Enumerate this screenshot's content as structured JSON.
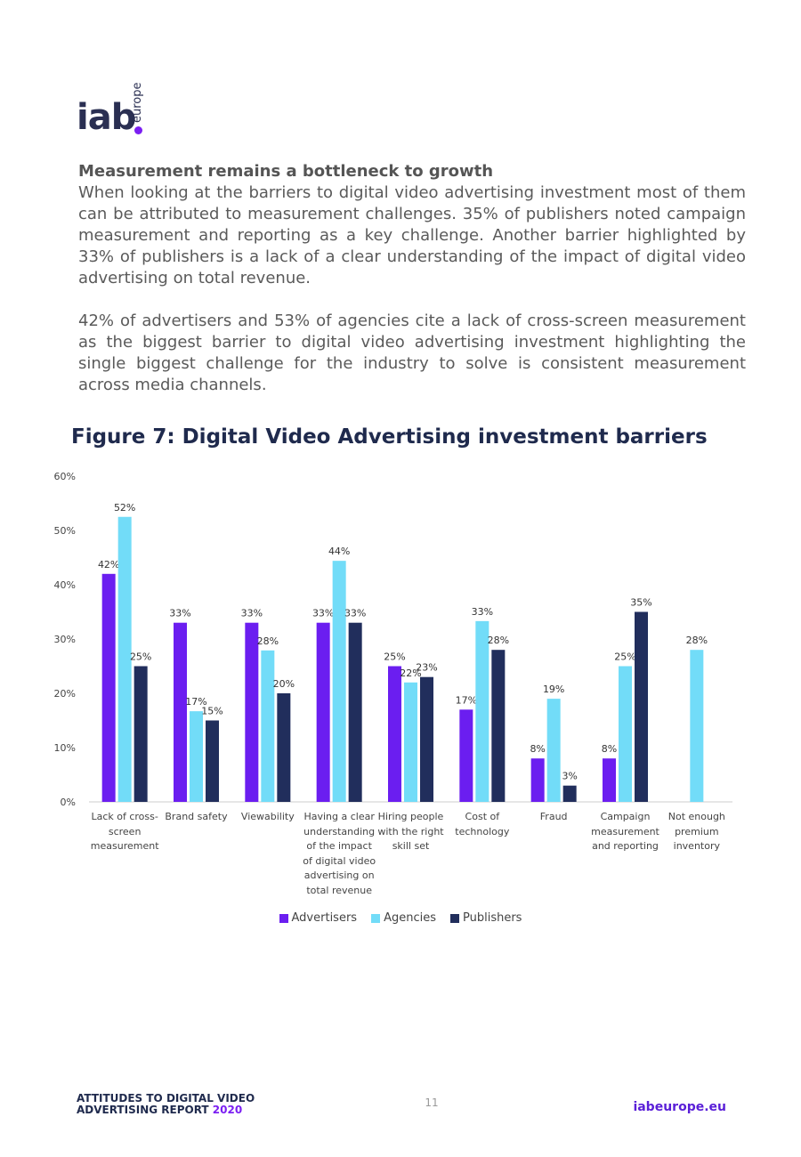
{
  "logo": {
    "main": "iab",
    "sub": "europe"
  },
  "section": {
    "heading": "Measurement remains a bottleneck to growth",
    "paragraph1": "When looking at the barriers to digital video advertising investment most of them can be attributed to measurement challenges. 35% of publishers noted campaign measurement and reporting as a key challenge. Another barrier highlighted by 33% of publishers is a lack of a clear understanding of the impact of digital video advertising on total revenue.",
    "paragraph2": "42% of advertisers and 53% of agencies cite a lack of cross-screen measurement as the biggest barrier to digital video advertising investment highlighting the single biggest challenge for the industry to solve is consistent measurement across media channels."
  },
  "figure_title": "Figure 7: Digital Video Advertising investment barriers",
  "chart_data": {
    "type": "bar",
    "title": "Figure 7: Digital Video Advertising investment barriers",
    "categories": [
      [
        "Lack of cross-",
        "screen",
        "measurement"
      ],
      [
        "Brand safety"
      ],
      [
        "Viewability"
      ],
      [
        "Having a clear",
        "understanding",
        "of the impact",
        "of digital video",
        "advertising on",
        "total revenue"
      ],
      [
        "Hiring people",
        "with the right",
        "skill set"
      ],
      [
        "Cost of",
        "technology"
      ],
      [
        "Fraud"
      ],
      [
        "Campaign",
        "measurement",
        "and reporting"
      ],
      [
        "Not enough",
        "premium",
        "inventory"
      ]
    ],
    "series": [
      {
        "name": "Advertisers",
        "color": "#6b1ef0",
        "values": [
          42,
          33,
          33,
          33,
          25,
          17,
          8,
          8,
          null
        ],
        "labels": [
          "42%",
          "33%",
          "33%",
          "33%",
          "25%",
          "17%",
          "8%",
          "8%",
          ""
        ]
      },
      {
        "name": "Agencies",
        "color": "#72dcf8",
        "values": [
          52.5,
          16.7,
          27.9,
          44.4,
          22,
          33.3,
          19,
          25,
          28
        ],
        "labels": [
          "52%",
          "17%",
          "28%",
          "44%",
          "22%",
          "33%",
          "19%",
          "25%",
          "28%"
        ]
      },
      {
        "name": "Publishers",
        "color": "#212e5c",
        "values": [
          25,
          15,
          20,
          33,
          23,
          28,
          3,
          35,
          null
        ],
        "labels": [
          "25%",
          "15%",
          "20%",
          "33%",
          "23%",
          "28%",
          "3%",
          "35%",
          ""
        ]
      }
    ],
    "yticks": [
      "0%",
      "10%",
      "20%",
      "30%",
      "40%",
      "50%",
      "60%"
    ],
    "ylim": [
      0,
      60
    ],
    "legend_position": "bottom",
    "grid": false
  },
  "footer": {
    "title_line1": "ATTITUDES TO DIGITAL VIDEO",
    "title_line2": "ADVERTISING REPORT ",
    "year": "2020",
    "page_number": "11",
    "website": "iabeurope.eu"
  }
}
